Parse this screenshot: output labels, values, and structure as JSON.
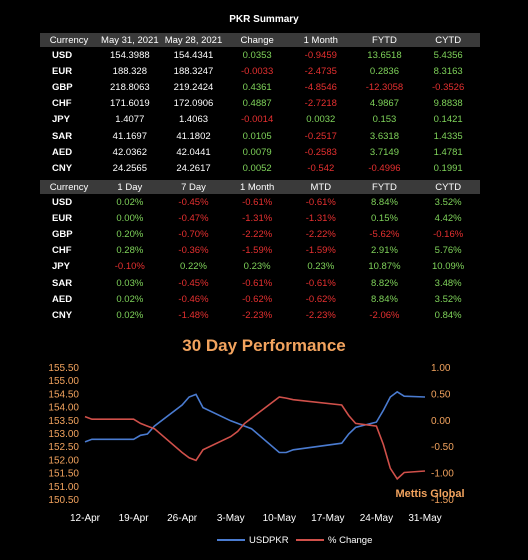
{
  "title": "PKR Summary",
  "table1": {
    "headers": [
      "Currency",
      "May 31, 2021",
      "May 28, 2021",
      "Change",
      "1 Month",
      "FYTD",
      "CYTD"
    ],
    "rows": [
      {
        "cur": "USD",
        "v1": "154.3988",
        "v2": "154.4341",
        "change": "0.0353",
        "m1": "-0.9459",
        "fytd": "13.6518",
        "cytd": "5.4356"
      },
      {
        "cur": "EUR",
        "v1": "188.328",
        "v2": "188.3247",
        "change": "-0.0033",
        "m1": "-2.4735",
        "fytd": "0.2836",
        "cytd": "8.3163"
      },
      {
        "cur": "GBP",
        "v1": "218.8063",
        "v2": "219.2424",
        "change": "0.4361",
        "m1": "-4.8546",
        "fytd": "-12.3058",
        "cytd": "-0.3526"
      },
      {
        "cur": "CHF",
        "v1": "171.6019",
        "v2": "172.0906",
        "change": "0.4887",
        "m1": "-2.7218",
        "fytd": "4.9867",
        "cytd": "9.8838"
      },
      {
        "cur": "JPY",
        "v1": "1.4077",
        "v2": "1.4063",
        "change": "-0.0014",
        "m1": "0.0032",
        "fytd": "0.153",
        "cytd": "0.1421"
      },
      {
        "cur": "SAR",
        "v1": "41.1697",
        "v2": "41.1802",
        "change": "0.0105",
        "m1": "-0.2517",
        "fytd": "3.6318",
        "cytd": "1.4335"
      },
      {
        "cur": "AED",
        "v1": "42.0362",
        "v2": "42.0441",
        "change": "0.0079",
        "m1": "-0.2583",
        "fytd": "3.7149",
        "cytd": "1.4781"
      },
      {
        "cur": "CNY",
        "v1": "24.2565",
        "v2": "24.2617",
        "change": "0.0052",
        "m1": "-0.542",
        "fytd": "-0.4996",
        "cytd": "0.1991"
      }
    ]
  },
  "table2": {
    "headers": [
      "Currency",
      "1 Day",
      "7 Day",
      "1 Month",
      "MTD",
      "FYTD",
      "CYTD"
    ],
    "rows": [
      {
        "cur": "USD",
        "d1": "0.02%",
        "d7": "-0.45%",
        "m1": "-0.61%",
        "mtd": "-0.61%",
        "fytd": "8.84%",
        "cytd": "3.52%"
      },
      {
        "cur": "EUR",
        "d1": "0.00%",
        "d7": "-0.47%",
        "m1": "-1.31%",
        "mtd": "-1.31%",
        "fytd": "0.15%",
        "cytd": "4.42%"
      },
      {
        "cur": "GBP",
        "d1": "0.20%",
        "d7": "-0.70%",
        "m1": "-2.22%",
        "mtd": "-2.22%",
        "fytd": "-5.62%",
        "cytd": "-0.16%"
      },
      {
        "cur": "CHF",
        "d1": "0.28%",
        "d7": "-0.36%",
        "m1": "-1.59%",
        "mtd": "-1.59%",
        "fytd": "2.91%",
        "cytd": "5.76%"
      },
      {
        "cur": "JPY",
        "d1": "-0.10%",
        "d7": "0.22%",
        "m1": "0.23%",
        "mtd": "0.23%",
        "fytd": "10.87%",
        "cytd": "10.09%"
      },
      {
        "cur": "SAR",
        "d1": "0.03%",
        "d7": "-0.45%",
        "m1": "-0.61%",
        "mtd": "-0.61%",
        "fytd": "8.82%",
        "cytd": "3.48%"
      },
      {
        "cur": "AED",
        "d1": "0.02%",
        "d7": "-0.46%",
        "m1": "-0.62%",
        "mtd": "-0.62%",
        "fytd": "8.84%",
        "cytd": "3.52%"
      },
      {
        "cur": "CNY",
        "d1": "0.02%",
        "d7": "-1.48%",
        "m1": "-2.23%",
        "mtd": "-2.23%",
        "fytd": "-2.06%",
        "cytd": "0.84%"
      }
    ]
  },
  "chart_data": {
    "type": "line",
    "title": "30 Day Performance",
    "watermark": "Mettis Global",
    "x_ticks": [
      "12-Apr",
      "19-Apr",
      "26-Apr",
      "3-May",
      "10-May",
      "17-May",
      "24-May",
      "31-May"
    ],
    "ylim_left": [
      150.5,
      155.5
    ],
    "ylim_right": [
      -1.5,
      1.0
    ],
    "yticks_left": [
      "155.50",
      "155.00",
      "154.50",
      "154.00",
      "153.50",
      "153.00",
      "152.50",
      "152.00",
      "151.50",
      "151.00",
      "150.50"
    ],
    "yticks_right": [
      "1.00",
      "0.50",
      "0.00",
      "-0.50",
      "-1.00",
      "-1.50"
    ],
    "colors": {
      "usdpkr": "#4a7bd0",
      "pct": "#d0504a",
      "axis_text": "#f2a35e"
    },
    "series": [
      {
        "name": "USDPKR",
        "axis": "left",
        "dates": [
          "2021-04-12",
          "2021-04-13",
          "2021-04-15",
          "2021-04-19",
          "2021-04-20",
          "2021-04-21",
          "2021-04-22",
          "2021-04-26",
          "2021-04-27",
          "2021-04-28",
          "2021-04-29",
          "2021-05-03",
          "2021-05-04",
          "2021-05-05",
          "2021-05-06",
          "2021-05-10",
          "2021-05-11",
          "2021-05-12",
          "2021-05-19",
          "2021-05-20",
          "2021-05-21",
          "2021-05-24",
          "2021-05-25",
          "2021-05-26",
          "2021-05-27",
          "2021-05-28",
          "2021-05-31"
        ],
        "values": [
          152.7,
          152.8,
          152.8,
          152.8,
          152.95,
          153.0,
          153.3,
          154.1,
          154.4,
          154.5,
          154.0,
          153.5,
          153.4,
          153.3,
          153.2,
          152.3,
          152.3,
          152.4,
          152.65,
          153.0,
          153.25,
          153.45,
          153.9,
          154.4,
          154.6,
          154.43,
          154.4
        ]
      },
      {
        "name": "% Change",
        "axis": "right",
        "dates": [
          "2021-04-12",
          "2021-04-13",
          "2021-04-15",
          "2021-04-19",
          "2021-04-20",
          "2021-04-21",
          "2021-04-22",
          "2021-04-26",
          "2021-04-27",
          "2021-04-28",
          "2021-04-29",
          "2021-05-03",
          "2021-05-04",
          "2021-05-05",
          "2021-05-06",
          "2021-05-10",
          "2021-05-11",
          "2021-05-12",
          "2021-05-19",
          "2021-05-20",
          "2021-05-21",
          "2021-05-24",
          "2021-05-25",
          "2021-05-26",
          "2021-05-27",
          "2021-05-28",
          "2021-05-31"
        ],
        "values": [
          0.08,
          0.03,
          0.03,
          0.03,
          -0.05,
          -0.1,
          -0.15,
          -0.6,
          -0.7,
          -0.75,
          -0.55,
          -0.3,
          -0.2,
          -0.05,
          0.05,
          0.45,
          0.43,
          0.4,
          0.3,
          0.1,
          -0.05,
          -0.1,
          -0.45,
          -0.9,
          -1.1,
          -0.98,
          -0.95
        ]
      }
    ]
  }
}
